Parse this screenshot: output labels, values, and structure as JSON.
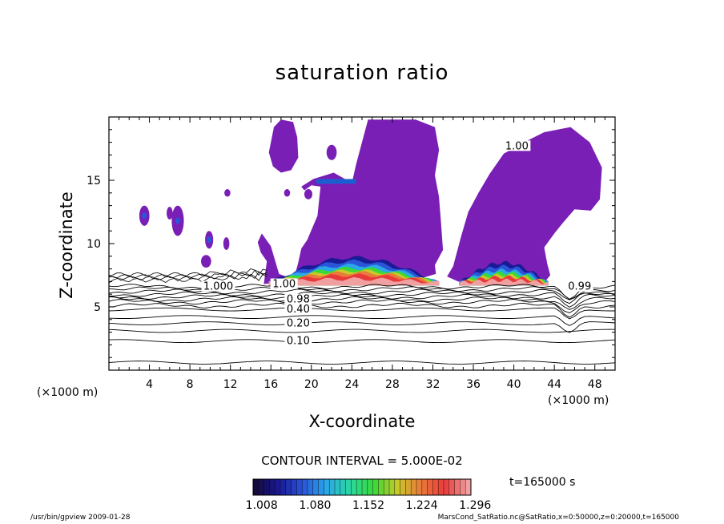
{
  "chart_data": {
    "type": "heatmap",
    "title": "saturation ratio",
    "xlabel": "X-coordinate",
    "ylabel": "Z-coordinate",
    "x_unit": "(×1000 m)",
    "y_unit": "(×1000 m)",
    "xlim": [
      0,
      50
    ],
    "ylim": [
      0,
      20
    ],
    "x_ticks": [
      4,
      8,
      12,
      16,
      20,
      24,
      28,
      32,
      36,
      40,
      44,
      48
    ],
    "y_ticks": [
      5,
      10,
      15
    ],
    "contour_interval_text": "CONTOUR INTERVAL = 5.000E-02",
    "contour_levels_labeled": [
      {
        "label": "0.10",
        "x": 18.7,
        "z": 2.3
      },
      {
        "label": "0.20",
        "x": 18.7,
        "z": 3.7
      },
      {
        "label": "0.40",
        "x": 18.7,
        "z": 4.8
      },
      {
        "label": "0.98",
        "x": 18.7,
        "z": 5.6
      },
      {
        "label": "1.00",
        "x": 17.3,
        "z": 6.8
      },
      {
        "label": "1.000",
        "x": 10.8,
        "z": 6.6
      },
      {
        "label": "0.99",
        "x": 46.5,
        "z": 6.6
      },
      {
        "label": "1.00",
        "x": 40.3,
        "z": 17.7
      }
    ],
    "colorbar": {
      "tick_labels": [
        "1.008",
        "1.080",
        "1.152",
        "1.224",
        "1.296"
      ],
      "colors": [
        "#140a3c",
        "#1a1a96",
        "#2a55d8",
        "#2aa8e8",
        "#2ad8a0",
        "#3ad83a",
        "#c8c82a",
        "#e87a3a",
        "#e83a3a",
        "#f0a0a0"
      ]
    },
    "supersaturated_fill_color": "#7a1fb5",
    "time_label": "t=165000 s"
  },
  "footer": {
    "left": "/usr/bin/gpview  2009-01-28",
    "right": "MarsCond_SatRatio.nc@SatRatio,x=0:50000,z=0:20000,t=165000"
  }
}
